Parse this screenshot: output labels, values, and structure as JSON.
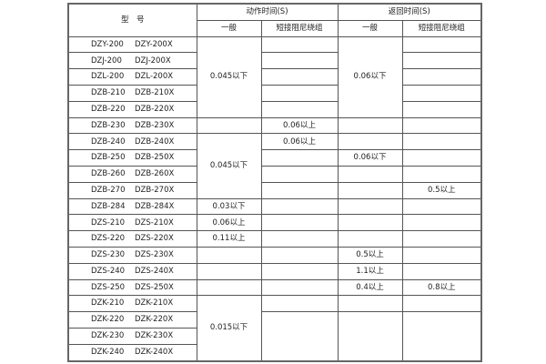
{
  "header": {
    "model": "型　号",
    "action_time": "动作时间(S)",
    "return_time": "返回时间(S)",
    "general": "一般",
    "short_damping": "短接阻尼绕组"
  },
  "rows": [
    {
      "model": [
        "DZY-200",
        "DZY-200X"
      ]
    },
    {
      "model": [
        "DZJ-200",
        "DZJ-200X"
      ]
    },
    {
      "model": [
        "DZL-200",
        "DZL-200X"
      ]
    },
    {
      "model": [
        "DZB-210",
        "DZB-210X"
      ]
    },
    {
      "model": [
        "DZB-220",
        "DZB-220X"
      ]
    },
    {
      "model": [
        "DZB-230",
        "DZB-230X"
      ]
    },
    {
      "model": [
        "DZB-240",
        "DZB-240X"
      ]
    },
    {
      "model": [
        "DZB-250",
        "DZB-250X"
      ]
    },
    {
      "model": [
        "DZB-260",
        "DZB-260X"
      ]
    },
    {
      "model": [
        "DZB-270",
        "DZB-270X"
      ]
    },
    {
      "model": [
        "DZB-284",
        "DZB-284X"
      ]
    },
    {
      "model": [
        "DZS-210",
        "DZS-210X"
      ]
    },
    {
      "model": [
        "DZS-220",
        "DZS-220X"
      ]
    },
    {
      "model": [
        "DZS-230",
        "DZS-230X"
      ]
    },
    {
      "model": [
        "DZS-240",
        "DZS-240X"
      ]
    },
    {
      "model": [
        "DZS-250",
        "DZS-250X"
      ]
    },
    {
      "model": [
        "DZK-210",
        "DZK-210X"
      ]
    },
    {
      "model": [
        "DZK-220",
        "DZK-220X"
      ]
    },
    {
      "model": [
        "DZK-230",
        "DZK-230X"
      ]
    },
    {
      "model": [
        "DZK-240",
        "DZK-240X"
      ]
    }
  ],
  "columns": {
    "action_general": [
      {
        "start": 0,
        "span": 5,
        "text": "0.045以下"
      },
      {
        "start": 5,
        "span": 1,
        "text": ""
      },
      {
        "start": 6,
        "span": 4,
        "text": "0.045以下"
      },
      {
        "start": 10,
        "span": 1,
        "text": "0.03以下"
      },
      {
        "start": 11,
        "span": 1,
        "text": "0.06以上"
      },
      {
        "start": 12,
        "span": 1,
        "text": "0.11以上"
      },
      {
        "start": 13,
        "span": 1,
        "text": ""
      },
      {
        "start": 14,
        "span": 1,
        "text": ""
      },
      {
        "start": 15,
        "span": 1,
        "text": ""
      },
      {
        "start": 16,
        "span": 4,
        "text": "0.015以下"
      }
    ],
    "action_short": [
      {
        "start": 0,
        "span": 1,
        "text": ""
      },
      {
        "start": 1,
        "span": 1,
        "text": ""
      },
      {
        "start": 2,
        "span": 1,
        "text": ""
      },
      {
        "start": 3,
        "span": 1,
        "text": ""
      },
      {
        "start": 4,
        "span": 1,
        "text": ""
      },
      {
        "start": 5,
        "span": 1,
        "text": "0.06以上"
      },
      {
        "start": 6,
        "span": 1,
        "text": "0.06以上"
      },
      {
        "start": 7,
        "span": 1,
        "text": ""
      },
      {
        "start": 8,
        "span": 1,
        "text": ""
      },
      {
        "start": 9,
        "span": 1,
        "text": ""
      },
      {
        "start": 10,
        "span": 1,
        "text": ""
      },
      {
        "start": 11,
        "span": 1,
        "text": ""
      },
      {
        "start": 12,
        "span": 1,
        "text": ""
      },
      {
        "start": 13,
        "span": 1,
        "text": ""
      },
      {
        "start": 14,
        "span": 1,
        "text": ""
      },
      {
        "start": 15,
        "span": 1,
        "text": ""
      },
      {
        "start": 16,
        "span": 1,
        "text": ""
      },
      {
        "start": 17,
        "span": 3,
        "text": ""
      }
    ],
    "return_general": [
      {
        "start": 0,
        "span": 5,
        "text": "0.06以下"
      },
      {
        "start": 5,
        "span": 1,
        "text": ""
      },
      {
        "start": 6,
        "span": 1,
        "text": ""
      },
      {
        "start": 7,
        "span": 1,
        "text": "0.06以下"
      },
      {
        "start": 8,
        "span": 1,
        "text": ""
      },
      {
        "start": 9,
        "span": 1,
        "text": ""
      },
      {
        "start": 10,
        "span": 1,
        "text": ""
      },
      {
        "start": 11,
        "span": 1,
        "text": ""
      },
      {
        "start": 12,
        "span": 1,
        "text": ""
      },
      {
        "start": 13,
        "span": 1,
        "text": "0.5以上"
      },
      {
        "start": 14,
        "span": 1,
        "text": "1.1以上"
      },
      {
        "start": 15,
        "span": 1,
        "text": "0.4以上"
      },
      {
        "start": 16,
        "span": 1,
        "text": ""
      },
      {
        "start": 17,
        "span": 3,
        "text": ""
      }
    ],
    "return_short": [
      {
        "start": 0,
        "span": 1,
        "text": ""
      },
      {
        "start": 1,
        "span": 1,
        "text": ""
      },
      {
        "start": 2,
        "span": 1,
        "text": ""
      },
      {
        "start": 3,
        "span": 1,
        "text": ""
      },
      {
        "start": 4,
        "span": 1,
        "text": ""
      },
      {
        "start": 5,
        "span": 1,
        "text": ""
      },
      {
        "start": 6,
        "span": 1,
        "text": ""
      },
      {
        "start": 7,
        "span": 1,
        "text": ""
      },
      {
        "start": 8,
        "span": 1,
        "text": ""
      },
      {
        "start": 9,
        "span": 1,
        "text": "0.5以上"
      },
      {
        "start": 10,
        "span": 1,
        "text": ""
      },
      {
        "start": 11,
        "span": 1,
        "text": ""
      },
      {
        "start": 12,
        "span": 1,
        "text": ""
      },
      {
        "start": 13,
        "span": 1,
        "text": ""
      },
      {
        "start": 14,
        "span": 1,
        "text": ""
      },
      {
        "start": 15,
        "span": 1,
        "text": "0.8以上"
      },
      {
        "start": 16,
        "span": 1,
        "text": ""
      },
      {
        "start": 17,
        "span": 3,
        "text": ""
      }
    ]
  }
}
